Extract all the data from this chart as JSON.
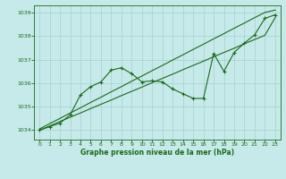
{
  "background_color": "#c6e9e9",
  "grid_color": "#a8d0d0",
  "line_color": "#1a6b1a",
  "title": "Graphe pression niveau de la mer (hPa)",
  "xlim": [
    -0.5,
    23.5
  ],
  "ylim": [
    1033.6,
    1039.3
  ],
  "xticks": [
    0,
    1,
    2,
    3,
    4,
    5,
    6,
    7,
    8,
    9,
    10,
    11,
    12,
    13,
    14,
    15,
    16,
    17,
    18,
    19,
    20,
    21,
    22,
    23
  ],
  "yticks": [
    1034,
    1035,
    1036,
    1037,
    1038,
    1039
  ],
  "hours": [
    0,
    1,
    2,
    3,
    4,
    5,
    6,
    7,
    8,
    9,
    10,
    11,
    12,
    13,
    14,
    15,
    16,
    17,
    18,
    19,
    20,
    21,
    22,
    23
  ],
  "line_upper": [
    1034.05,
    1034.28,
    1034.5,
    1034.73,
    1034.95,
    1035.18,
    1035.4,
    1035.63,
    1035.85,
    1036.08,
    1036.3,
    1036.53,
    1036.75,
    1036.98,
    1037.2,
    1037.43,
    1037.65,
    1037.88,
    1038.1,
    1038.33,
    1038.55,
    1038.78,
    1039.0,
    1039.1
  ],
  "line_lower": [
    1034.0,
    1034.18,
    1034.37,
    1034.55,
    1034.73,
    1034.92,
    1035.1,
    1035.28,
    1035.47,
    1035.65,
    1035.83,
    1036.02,
    1036.2,
    1036.38,
    1036.57,
    1036.75,
    1036.93,
    1037.12,
    1037.3,
    1037.48,
    1037.67,
    1037.85,
    1038.03,
    1038.78
  ],
  "line_jagged": [
    1034.0,
    1034.15,
    1034.3,
    1034.65,
    1035.5,
    1035.85,
    1036.05,
    1036.55,
    1036.65,
    1036.4,
    1036.05,
    1036.1,
    1036.05,
    1035.75,
    1035.55,
    1035.35,
    1035.35,
    1037.25,
    1036.5,
    1037.3,
    1037.7,
    1038.05,
    1038.75,
    1038.9
  ]
}
